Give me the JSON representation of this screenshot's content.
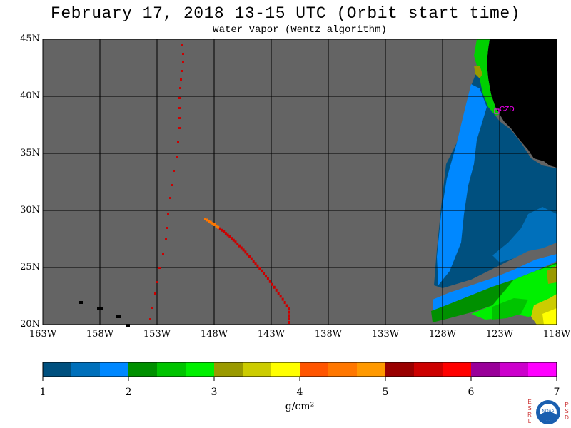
{
  "title": "February 17, 2018  13-15 UTC  (Orbit start time)",
  "subtitle": "Water Vapor (Wentz algorithm)",
  "map": {
    "lat_range": [
      20,
      45
    ],
    "lon_range": [
      -163,
      -118
    ],
    "lat_labels": [
      "45N",
      "40N",
      "35N",
      "30N",
      "25N",
      "20N"
    ],
    "lon_labels": [
      "163W",
      "158W",
      "153W",
      "148W",
      "143W",
      "138W",
      "133W",
      "128W",
      "123W",
      "118W"
    ],
    "station_label": "CZD",
    "colors": {
      "no_data": "#646464",
      "land": "#000000",
      "grid": "#000000",
      "station": "#ff00ff"
    }
  },
  "colorbar": {
    "ticks": [
      "1",
      "2",
      "3",
      "4",
      "5",
      "6",
      "7"
    ],
    "unit": "g/cm²",
    "colors": [
      "#00507f",
      "#0070bb",
      "#0088ff",
      "#009000",
      "#00c400",
      "#00f000",
      "#9a9a00",
      "#cccc00",
      "#ffff00",
      "#ff5500",
      "#ff7700",
      "#ff9900",
      "#990000",
      "#cc0000",
      "#ff0000",
      "#990099",
      "#cc00cc",
      "#ff00ff"
    ]
  },
  "logo": {
    "left_letters": "ESRL",
    "right_letters": "PSD",
    "text": "NOAA"
  }
}
